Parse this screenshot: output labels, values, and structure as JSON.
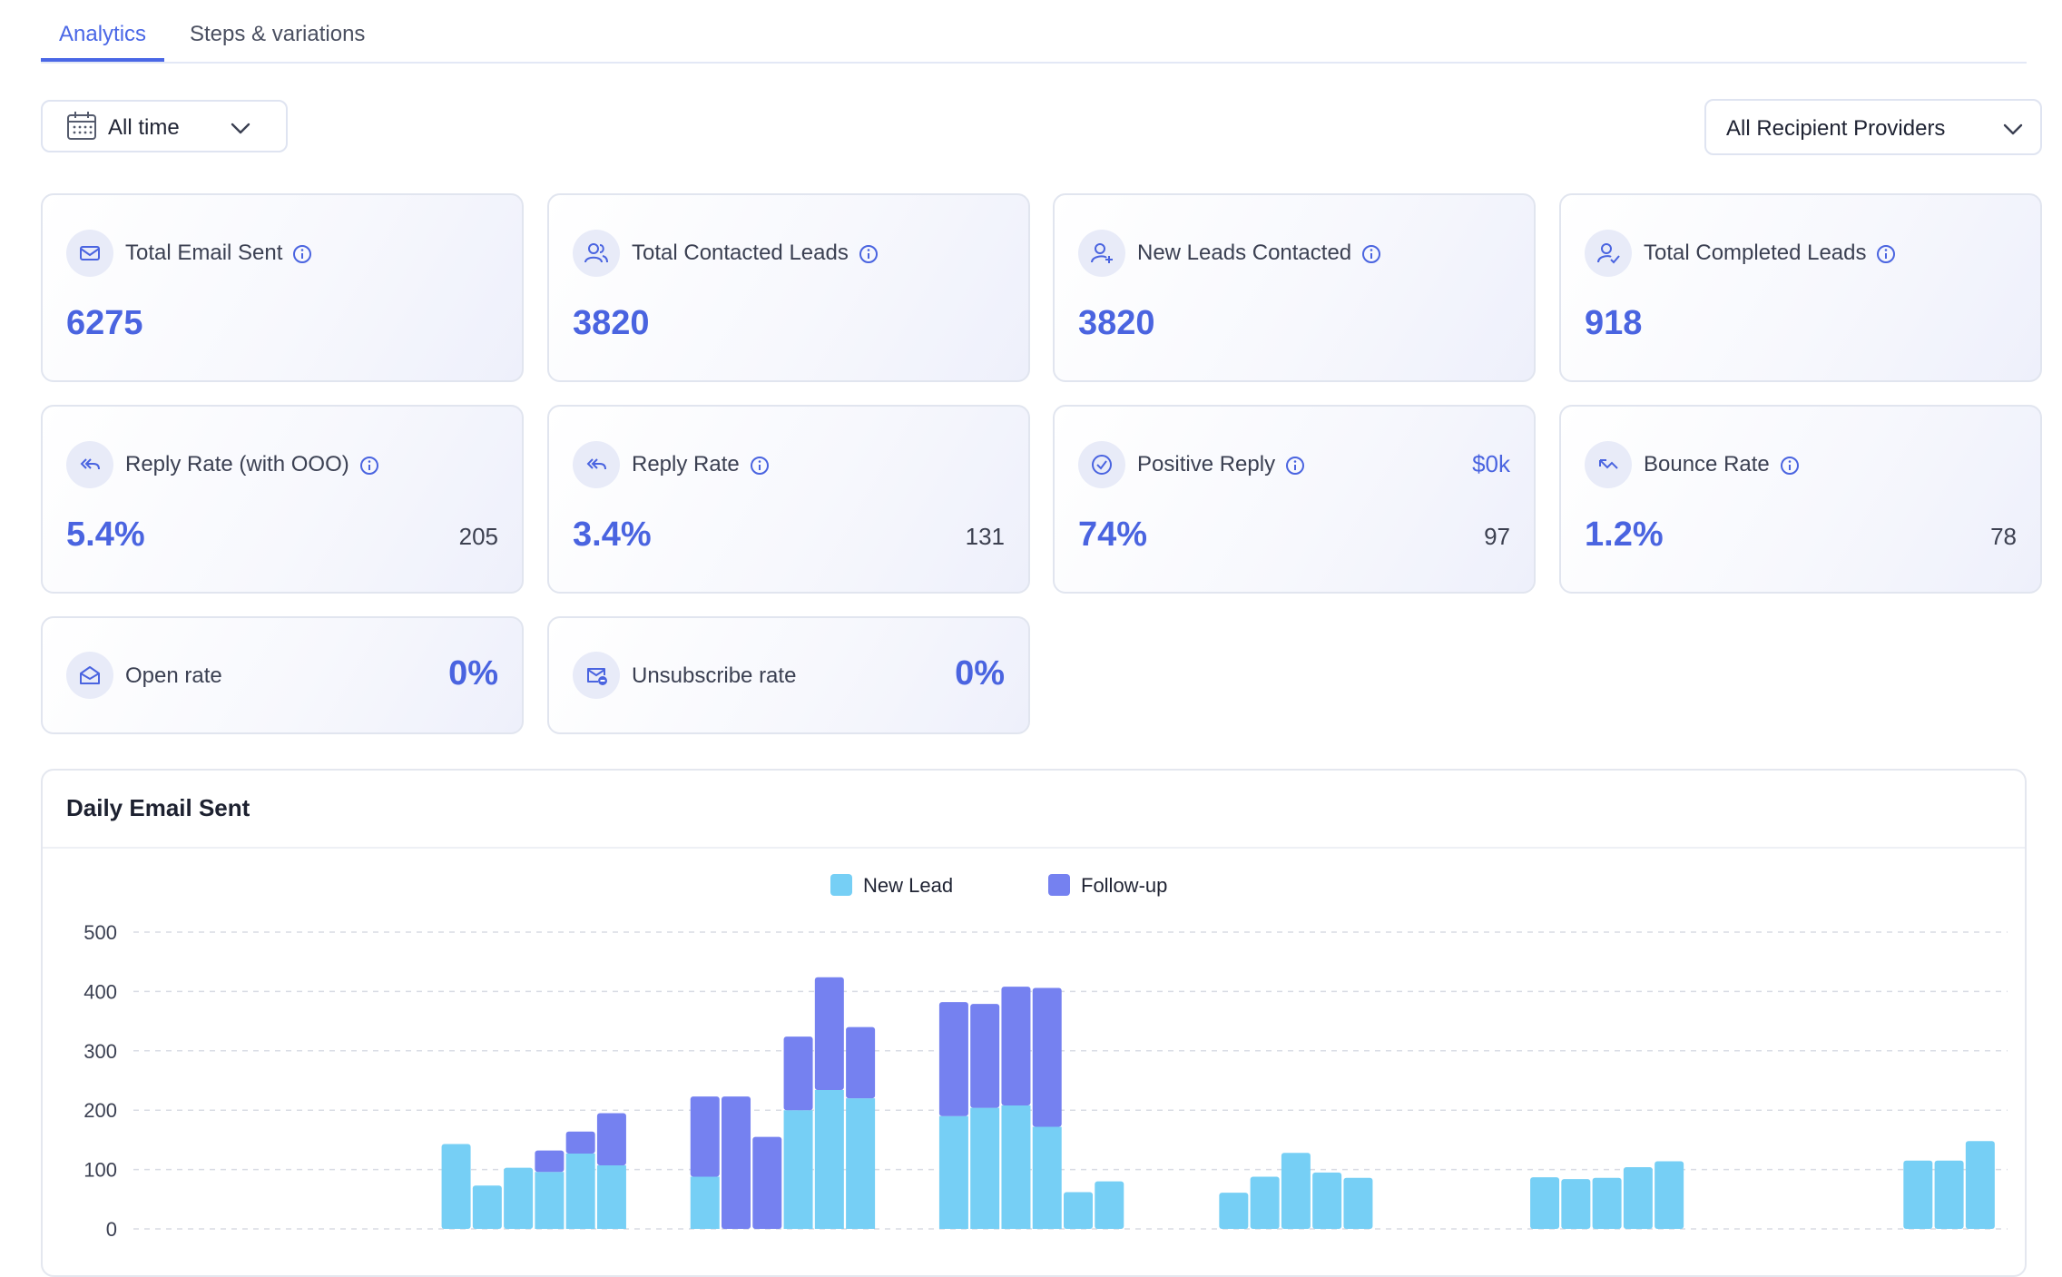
{
  "tabs": [
    {
      "label": "Analytics",
      "active": true
    },
    {
      "label": "Steps & variations",
      "active": false
    }
  ],
  "filters": {
    "time_range": "All time",
    "provider": "All Recipient Providers"
  },
  "cards": {
    "total_email_sent": {
      "title": "Total Email Sent",
      "value": "6275",
      "icon": "mail-icon"
    },
    "total_contacted_leads": {
      "title": "Total Contacted Leads",
      "value": "3820",
      "icon": "users-icon"
    },
    "new_leads_contacted": {
      "title": "New Leads Contacted",
      "value": "3820",
      "icon": "user-plus-icon"
    },
    "total_completed_leads": {
      "title": "Total Completed Leads",
      "value": "918",
      "icon": "user-check-icon"
    },
    "reply_rate_ooo": {
      "title": "Reply Rate (with OOO)",
      "value": "5.4%",
      "count": "205",
      "icon": "reply-all-icon"
    },
    "reply_rate": {
      "title": "Reply Rate",
      "value": "3.4%",
      "count": "131",
      "icon": "reply-all-icon"
    },
    "positive_reply": {
      "title": "Positive Reply",
      "value": "74%",
      "count": "97",
      "amount": "$0k",
      "icon": "check-circle-icon"
    },
    "bounce_rate": {
      "title": "Bounce Rate",
      "value": "1.2%",
      "count": "78",
      "icon": "bounce-arrow-icon"
    },
    "open_rate": {
      "title": "Open rate",
      "value": "0%",
      "icon": "mail-open-icon"
    },
    "unsubscribe_rate": {
      "title": "Unsubscribe rate",
      "value": "0%",
      "icon": "mail-minus-icon"
    }
  },
  "colors": {
    "accent": "#4a67e6",
    "new_lead": "#76cff5",
    "follow_up": "#7581f0"
  },
  "chart_data": {
    "type": "bar",
    "title": "Daily Email Sent",
    "stacked": true,
    "legend_position": "top-center",
    "grid": true,
    "ylim": [
      0,
      500
    ],
    "yticks": [
      0,
      100,
      200,
      300,
      400,
      500
    ],
    "series": [
      {
        "name": "New Lead",
        "color": "#76cff5",
        "values": [
          0,
          0,
          0,
          0,
          0,
          0,
          0,
          0,
          0,
          143,
          73,
          103,
          96,
          127,
          107,
          0,
          0,
          88,
          0,
          0,
          200,
          234,
          220,
          0,
          0,
          190,
          204,
          208,
          172,
          62,
          80,
          0,
          0,
          0,
          61,
          88,
          128,
          95,
          86,
          0,
          0,
          0,
          0,
          0,
          87,
          84,
          86,
          104,
          114,
          0,
          0,
          0,
          0,
          0,
          0,
          0,
          115,
          115,
          148
        ]
      },
      {
        "name": "Follow-up",
        "color": "#7581f0",
        "values": [
          0,
          0,
          0,
          0,
          0,
          0,
          0,
          0,
          0,
          0,
          0,
          0,
          36,
          37,
          88,
          0,
          0,
          135,
          223,
          155,
          124,
          190,
          120,
          0,
          0,
          192,
          175,
          200,
          234,
          0,
          0,
          0,
          0,
          0,
          0,
          0,
          0,
          0,
          0,
          0,
          0,
          0,
          0,
          0,
          0,
          0,
          0,
          0,
          0,
          0,
          0,
          0,
          0,
          0,
          0,
          0,
          0,
          0,
          0
        ]
      }
    ]
  }
}
